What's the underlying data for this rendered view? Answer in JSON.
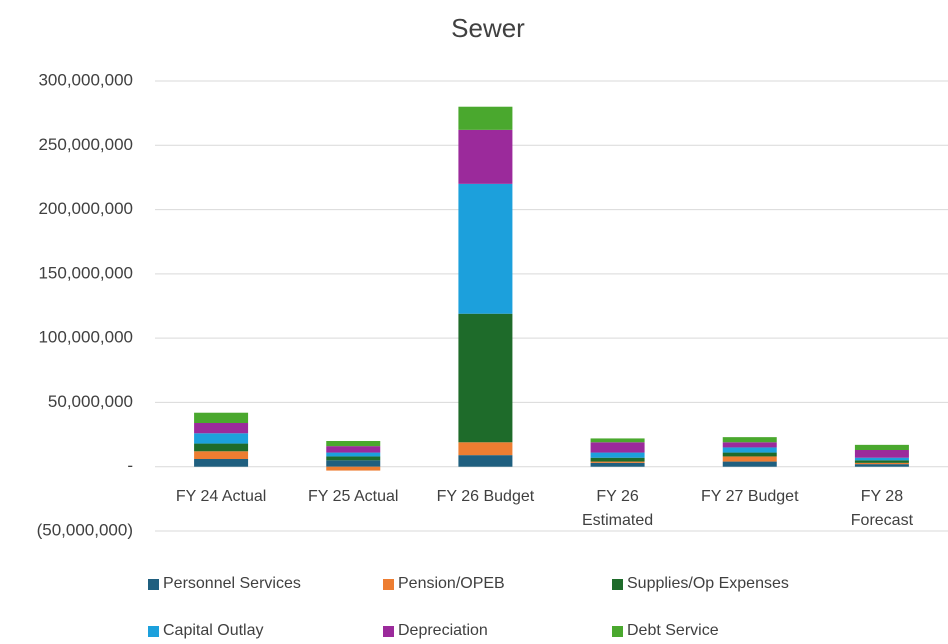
{
  "chart_data": {
    "type": "stacked_bar",
    "title": "Sewer",
    "categories": [
      "FY 24 Actual",
      "FY 25 Actual",
      "FY 26 Budget",
      "FY 26 Estimated",
      "FY 27 Budget",
      "FY 28 Forecast"
    ],
    "series": [
      {
        "name": "Personnel Services",
        "color": "#1f5f7f",
        "values": [
          6000000,
          5000000,
          9000000,
          3000000,
          4000000,
          2000000
        ]
      },
      {
        "name": "Pension/OPEB",
        "color": "#ed7d31",
        "values": [
          6000000,
          -3000000,
          10000000,
          1000000,
          4000000,
          1000000
        ]
      },
      {
        "name": "Supplies/Op Expenses",
        "color": "#1e6b2a",
        "values": [
          6000000,
          3000000,
          100000000,
          3000000,
          3000000,
          2000000
        ]
      },
      {
        "name": "Capital Outlay",
        "color": "#1ca0dc",
        "values": [
          8000000,
          3000000,
          101000000,
          4000000,
          4000000,
          2000000
        ]
      },
      {
        "name": "Depreciation",
        "color": "#9b2a9b",
        "values": [
          8000000,
          5000000,
          42000000,
          8000000,
          4000000,
          6000000
        ]
      },
      {
        "name": "Debt Service",
        "color": "#4aa82e",
        "values": [
          8000000,
          4000000,
          18000000,
          3000000,
          4000000,
          4000000
        ]
      }
    ],
    "ylim": [
      -50000000,
      300000000
    ],
    "yticks": [
      {
        "value": -50000000,
        "label": "(50,000,000)"
      },
      {
        "value": 0,
        "label": "-"
      },
      {
        "value": 50000000,
        "label": "50,000,000"
      },
      {
        "value": 100000000,
        "label": "100,000,000"
      },
      {
        "value": 150000000,
        "label": "150,000,000"
      },
      {
        "value": 200000000,
        "label": "200,000,000"
      },
      {
        "value": 250000000,
        "label": "250,000,000"
      },
      {
        "value": 300000000,
        "label": "300,000,000"
      }
    ],
    "grid": true,
    "legend": "bottom"
  }
}
